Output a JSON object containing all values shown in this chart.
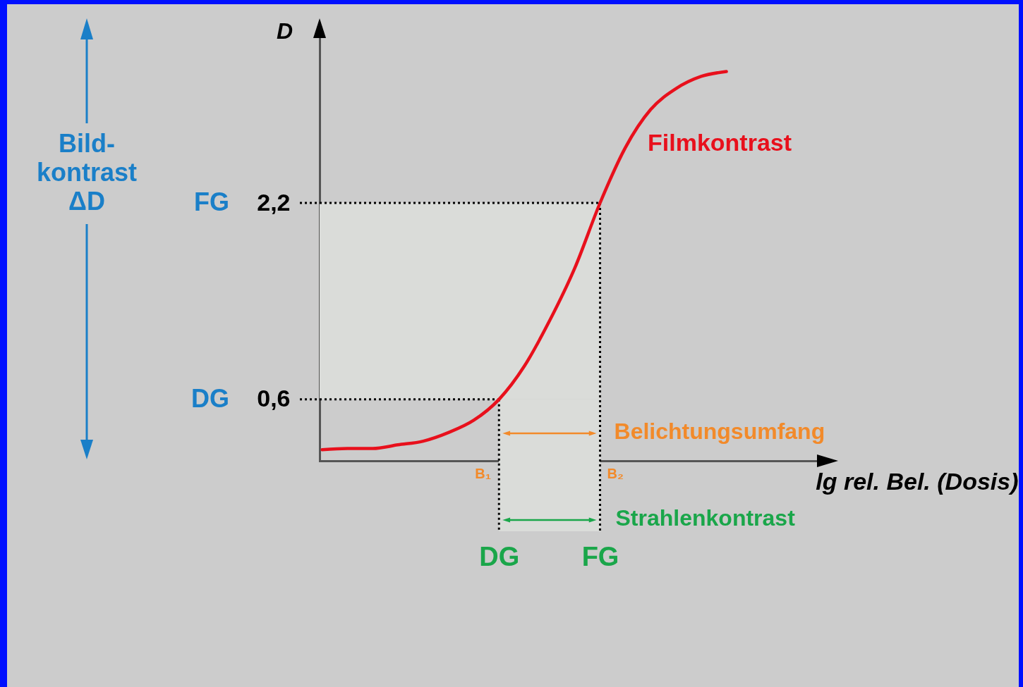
{
  "chart_data": {
    "type": "line",
    "xlabel": "lg rel. Bel. (Dosis)",
    "ylabel": "D",
    "categories": [
      null,
      null,
      null,
      null,
      null,
      null,
      null,
      "DG",
      null,
      null,
      null,
      "FG",
      null,
      null,
      null,
      null,
      null
    ],
    "series": [
      {
        "name": "Filmkontrast",
        "color": "#e8101c",
        "values": [
          0.19,
          0.2,
          0.2,
          0.23,
          0.26,
          0.33,
          0.43,
          0.6,
          0.87,
          1.24,
          1.67,
          2.2,
          2.65,
          2.96,
          3.13,
          3.23,
          3.27
        ]
      }
    ],
    "ylim": [
      0.1,
      3.6
    ],
    "yticks": [
      {
        "value": 0.6,
        "label": "0,6"
      },
      {
        "value": 2.2,
        "label": "2,2"
      }
    ],
    "grid": false,
    "marker": "none",
    "line_style": "solid",
    "ref_lines": [
      {
        "axis": "y",
        "value": 0.6,
        "label": "DG",
        "color": "#000000",
        "line_style": "dotted"
      },
      {
        "axis": "y",
        "value": 2.2,
        "label": "FG",
        "color": "#000000",
        "line_style": "dotted"
      },
      {
        "axis": "x",
        "value": "DG",
        "color": "#000000",
        "line_style": "dotted"
      },
      {
        "axis": "x",
        "value": "FG",
        "color": "#000000",
        "line_style": "dotted"
      }
    ],
    "bands": [
      {
        "axis": "y",
        "from": 0.6,
        "to": 2.2,
        "color": "#dadcd9"
      },
      {
        "axis": "x",
        "from": "DG",
        "to": "FG",
        "color": "#dadcd9"
      }
    ],
    "annotations": [
      "Belichtungsumfang",
      "B₁",
      "B₂",
      "Strahlenkontrast",
      "Bild-kontrast ΔD"
    ]
  }
}
